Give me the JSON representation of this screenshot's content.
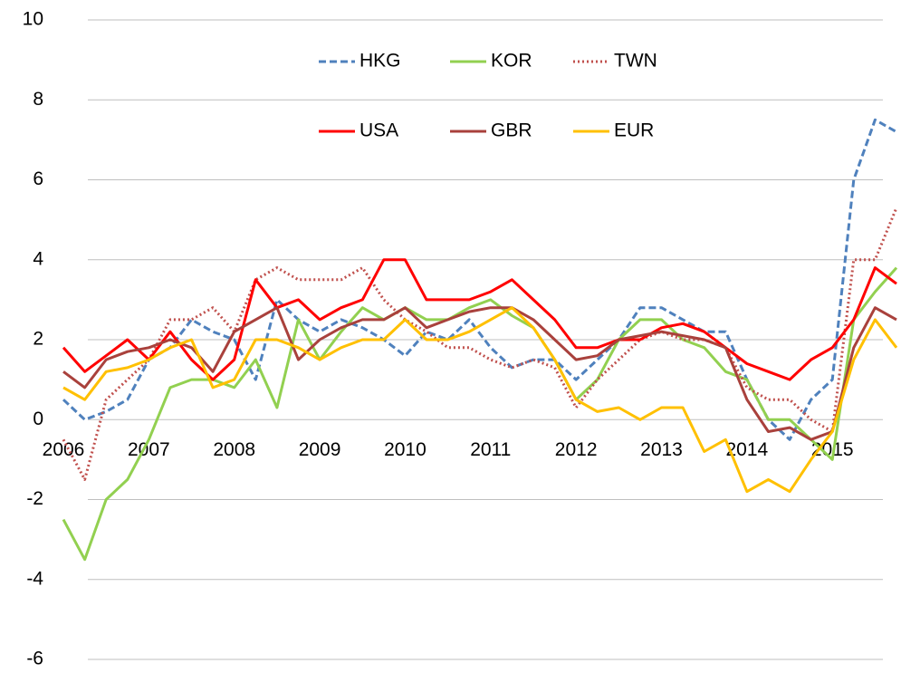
{
  "chart_data": {
    "type": "line",
    "x": [
      2006,
      2006.25,
      2006.5,
      2006.75,
      2007,
      2007.25,
      2007.5,
      2007.75,
      2008,
      2008.25,
      2008.5,
      2008.75,
      2009,
      2009.25,
      2009.5,
      2009.75,
      2010,
      2010.25,
      2010.5,
      2010.75,
      2011,
      2011.25,
      2011.5,
      2011.75,
      2012,
      2012.25,
      2012.5,
      2012.75,
      2013,
      2013.25,
      2013.5,
      2013.75,
      2014,
      2014.25,
      2014.5,
      2014.75,
      2015,
      2015.25,
      2015.5,
      2015.75
    ],
    "xlim": [
      2006,
      2015.75
    ],
    "xticks": [
      2006,
      2007,
      2008,
      2009,
      2010,
      2011,
      2012,
      2013,
      2014,
      2015
    ],
    "ylim": [
      -6,
      10
    ],
    "yticks": [
      -6,
      -4,
      -2,
      0,
      2,
      4,
      6,
      8,
      10
    ],
    "grid": true,
    "legend": "top",
    "series": [
      {
        "name": "HKG",
        "color": "#4f81bd",
        "dash": "dashed",
        "values": [
          0.5,
          0,
          0.2,
          0.5,
          1.5,
          1.8,
          2.5,
          2.2,
          2.0,
          1.0,
          3.0,
          2.5,
          2.2,
          2.5,
          2.3,
          2.0,
          1.6,
          2.2,
          2.0,
          2.5,
          1.8,
          1.3,
          1.5,
          1.5,
          1.0,
          1.5,
          2.0,
          2.8,
          2.8,
          2.5,
          2.2,
          2.2,
          1.0,
          0.0,
          -0.5,
          0.5,
          1.0,
          6.0,
          7.5,
          7.2
        ]
      },
      {
        "name": "KOR",
        "color": "#92d050",
        "dash": "solid",
        "values": [
          -2.5,
          -3.5,
          -2.0,
          -1.5,
          -0.5,
          0.8,
          1.0,
          1.0,
          0.8,
          1.5,
          0.3,
          2.5,
          1.5,
          2.2,
          2.8,
          2.5,
          2.8,
          2.5,
          2.5,
          2.8,
          3.0,
          2.6,
          2.3,
          1.5,
          0.5,
          1.0,
          2.0,
          2.5,
          2.5,
          2.0,
          1.8,
          1.2,
          1.0,
          0.0,
          0.0,
          -0.5,
          -1.0,
          2.5,
          3.2,
          3.8
        ]
      },
      {
        "name": "TWN",
        "color": "#c0504d",
        "dash": "dotted",
        "values": [
          -0.5,
          -1.5,
          0.5,
          1.0,
          1.5,
          2.5,
          2.5,
          2.8,
          2.2,
          3.5,
          3.8,
          3.5,
          3.5,
          3.5,
          3.8,
          3.0,
          2.5,
          2.2,
          1.8,
          1.8,
          1.5,
          1.3,
          1.5,
          1.3,
          0.3,
          1.0,
          1.5,
          2.0,
          2.2,
          2.0,
          2.0,
          1.8,
          0.8,
          0.5,
          0.5,
          0.0,
          -0.3,
          4.0,
          4.0,
          5.3
        ]
      },
      {
        "name": "USA",
        "color": "#ff0000",
        "dash": "solid",
        "values": [
          1.8,
          1.2,
          1.6,
          2.0,
          1.5,
          2.2,
          1.5,
          1.0,
          1.5,
          3.5,
          2.8,
          3.0,
          2.5,
          2.8,
          3.0,
          4.0,
          4.0,
          3.0,
          3.0,
          3.0,
          3.2,
          3.5,
          3.0,
          2.5,
          1.8,
          1.8,
          2.0,
          2.0,
          2.3,
          2.4,
          2.2,
          1.8,
          1.4,
          1.2,
          1.0,
          1.5,
          1.8,
          2.5,
          3.8,
          3.4
        ]
      },
      {
        "name": "GBR",
        "color": "#a9413c",
        "dash": "solid",
        "values": [
          1.2,
          0.8,
          1.5,
          1.7,
          1.8,
          2.0,
          1.8,
          1.2,
          2.2,
          2.5,
          2.8,
          1.5,
          2.0,
          2.3,
          2.5,
          2.5,
          2.8,
          2.3,
          2.5,
          2.7,
          2.8,
          2.8,
          2.5,
          2.0,
          1.5,
          1.6,
          2.0,
          2.1,
          2.2,
          2.1,
          2.0,
          1.8,
          0.5,
          -0.3,
          -0.2,
          -0.5,
          -0.3,
          1.8,
          2.8,
          2.5
        ]
      },
      {
        "name": "EUR",
        "color": "#ffc000",
        "dash": "solid",
        "values": [
          0.8,
          0.5,
          1.2,
          1.3,
          1.5,
          1.8,
          2.0,
          0.8,
          1.0,
          2.0,
          2.0,
          1.8,
          1.5,
          1.8,
          2.0,
          2.0,
          2.5,
          2.0,
          2.0,
          2.2,
          2.5,
          2.8,
          2.3,
          1.5,
          0.5,
          0.2,
          0.3,
          0.0,
          0.3,
          0.3,
          -0.8,
          -0.5,
          -1.8,
          -1.5,
          -1.8,
          -1.0,
          -0.3,
          1.5,
          2.5,
          1.8
        ]
      }
    ]
  }
}
